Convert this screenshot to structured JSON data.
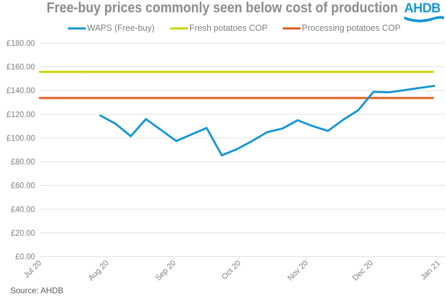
{
  "header": {
    "title": "Free-buy prices commonly seen below cost of production",
    "logo_text": "AHDB"
  },
  "source": "Source: AHDB",
  "colors": {
    "waps": "#1596d6",
    "fresh": "#c8d400",
    "processing": "#e05a1a",
    "grid": "#e0e0e0",
    "text": "#7f7f7f"
  },
  "chart_data": {
    "type": "line",
    "title": "Free-buy prices commonly seen below cost of production",
    "xlabel": "",
    "ylabel": "",
    "ylim": [
      0,
      180
    ],
    "xlim": [
      "2020-07-01",
      "2021-01-01"
    ],
    "yticks": [
      "£0.00",
      "£20.00",
      "£40.00",
      "£60.00",
      "£80.00",
      "£100.00",
      "£120.00",
      "£140.00",
      "£160.00",
      "£180.00"
    ],
    "ytick_values": [
      0,
      20,
      40,
      60,
      80,
      100,
      120,
      140,
      160,
      180
    ],
    "xticks": [
      {
        "label": "Jul 20",
        "date": "2020-07-01"
      },
      {
        "label": "Aug 20",
        "date": "2020-08-01"
      },
      {
        "label": "Sep 20",
        "date": "2020-09-01"
      },
      {
        "label": "Oct 20",
        "date": "2020-10-01"
      },
      {
        "label": "Nov 20",
        "date": "2020-11-01"
      },
      {
        "label": "Dec 20",
        "date": "2020-12-01"
      },
      {
        "label": "Jan 21",
        "date": "2021-01-01"
      }
    ],
    "grid": true,
    "legend": "top",
    "series": [
      {
        "name": "WAPS (Free-buy)",
        "color": "#1596d6",
        "x": [
          "2020-07-29",
          "2020-08-05",
          "2020-08-12",
          "2020-08-19",
          "2020-09-02",
          "2020-09-16",
          "2020-09-23",
          "2020-09-30",
          "2020-10-07",
          "2020-10-14",
          "2020-10-21",
          "2020-10-28",
          "2020-11-04",
          "2020-11-11",
          "2020-11-18",
          "2020-11-25",
          "2020-12-02",
          "2020-12-09",
          "2020-12-30"
        ],
        "y": [
          118.9,
          112,
          101.5,
          116,
          97.5,
          108.5,
          85.4,
          90.6,
          97.5,
          105,
          108,
          115,
          110,
          106,
          115.4,
          123.5,
          139,
          138.5,
          144
        ]
      },
      {
        "name": "Fresh potatoes COP",
        "color": "#c8d400",
        "x": [
          "2020-07-01",
          "2021-01-01"
        ],
        "y": [
          155.8,
          155.8
        ]
      },
      {
        "name": "Processing potatoes COP",
        "color": "#e05a1a",
        "x": [
          "2020-07-01",
          "2021-01-01"
        ],
        "y": [
          133.8,
          133.8
        ]
      }
    ]
  }
}
